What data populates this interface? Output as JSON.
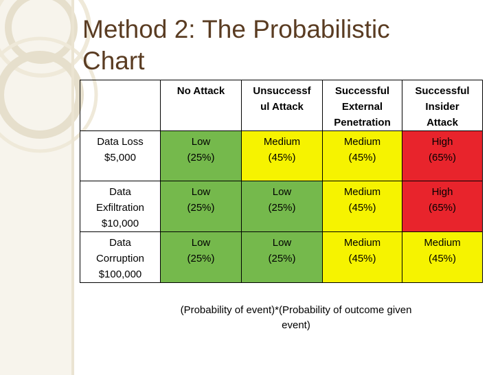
{
  "slide": {
    "title_lines": [
      "Method 2: The Probabilistic",
      "Chart"
    ],
    "footnote_lines": [
      "(Probability of event)*(Probability of outcome given",
      "event)"
    ]
  },
  "colors": {
    "low": "#75b94c",
    "medium": "#f6f300",
    "high": "#e8242c",
    "title": "#5a3c22",
    "accent_band": "#efe9d9"
  },
  "table": {
    "headers": [
      {
        "lines": []
      },
      {
        "lines": [
          "No Attack"
        ]
      },
      {
        "lines": [
          "Unsuccessf",
          "ul Attack"
        ]
      },
      {
        "lines": [
          "Successful",
          "External",
          "Penetration"
        ]
      },
      {
        "lines": [
          "Successful",
          "Insider",
          "Attack"
        ]
      }
    ],
    "rows": [
      {
        "label_lines": [
          "Data Loss",
          "$5,000"
        ],
        "cells": [
          {
            "level": "Low",
            "pct": "(25%)"
          },
          {
            "level": "Medium",
            "pct": "(45%)"
          },
          {
            "level": "Medium",
            "pct": "(45%)"
          },
          {
            "level": "High",
            "pct": "(65%)"
          }
        ]
      },
      {
        "label_lines": [
          "Data",
          "Exfiltration",
          "$10,000"
        ],
        "cells": [
          {
            "level": "Low",
            "pct": "(25%)"
          },
          {
            "level": "Low",
            "pct": "(25%)"
          },
          {
            "level": "Medium",
            "pct": "(45%)"
          },
          {
            "level": "High",
            "pct": "(65%)"
          }
        ]
      },
      {
        "label_lines": [
          "Data",
          "Corruption",
          "$100,000"
        ],
        "cells": [
          {
            "level": "Low",
            "pct": "(25%)"
          },
          {
            "level": "Low",
            "pct": "(25%)"
          },
          {
            "level": "Medium",
            "pct": "(45%)"
          },
          {
            "level": "Medium",
            "pct": "(45%)"
          }
        ]
      }
    ]
  }
}
